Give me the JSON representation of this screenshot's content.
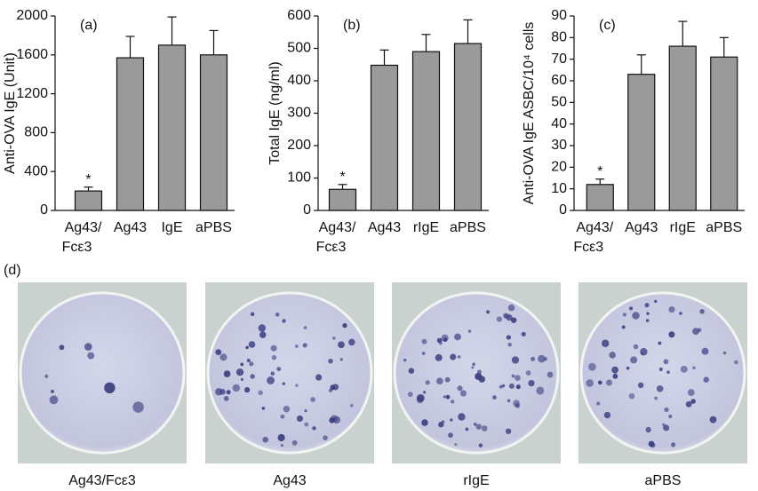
{
  "chart_data": [
    {
      "type": "bar",
      "panel": "(a)",
      "ylabel": "Anti-OVA IgE (Unit)",
      "categories": [
        "Ag43/\nFcε3",
        "Ag43",
        "IgE",
        "aPBS"
      ],
      "values": [
        200,
        1570,
        1700,
        1600
      ],
      "errors": [
        40,
        220,
        290,
        250
      ],
      "significance": [
        "*",
        null,
        null,
        null
      ],
      "color": "#9a9a9a",
      "ylim": [
        0,
        2000
      ],
      "yticks": [
        0,
        400,
        800,
        1200,
        1600,
        2000
      ]
    },
    {
      "type": "bar",
      "panel": "(b)",
      "ylabel": "Total IgE (ng/ml)",
      "categories": [
        "Ag43/\nFcε3",
        "Ag43",
        "rIgE",
        "aPBS"
      ],
      "values": [
        65,
        448,
        490,
        515
      ],
      "errors": [
        15,
        47,
        53,
        73
      ],
      "significance": [
        "*",
        null,
        null,
        null
      ],
      "color": "#9a9a9a",
      "ylim": [
        0,
        600
      ],
      "yticks": [
        0,
        100,
        200,
        300,
        400,
        500,
        600
      ]
    },
    {
      "type": "bar",
      "panel": "(c)",
      "ylabel": "Anti-OVA IgE ASBC/10⁴ cells",
      "categories": [
        "Ag43/\nFcε3",
        "Ag43",
        "rIgE",
        "aPBS"
      ],
      "values": [
        12,
        63,
        76,
        71
      ],
      "errors": [
        2.5,
        9,
        11.5,
        9
      ],
      "significance": [
        "*",
        null,
        null,
        null
      ],
      "color": "#9a9a9a",
      "ylim": [
        0,
        90
      ],
      "yticks": [
        0,
        10,
        20,
        30,
        40,
        50,
        60,
        70,
        80,
        90
      ]
    }
  ],
  "panel_d": {
    "label": "(d)",
    "captions": [
      "Ag43/Fcε3",
      "Ag43",
      "rIgE",
      "aPBS"
    ]
  }
}
